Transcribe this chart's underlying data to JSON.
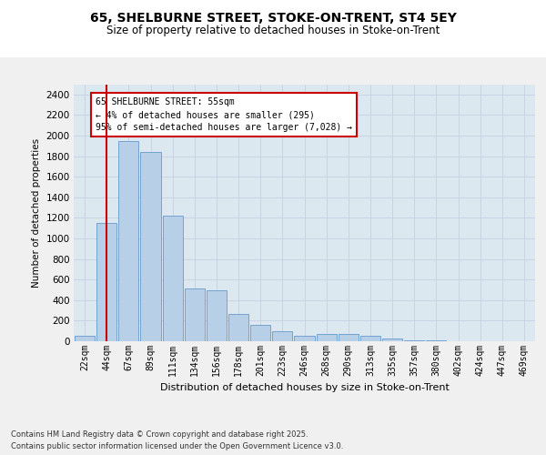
{
  "title_line1": "65, SHELBURNE STREET, STOKE-ON-TRENT, ST4 5EY",
  "title_line2": "Size of property relative to detached houses in Stoke-on-Trent",
  "xlabel": "Distribution of detached houses by size in Stoke-on-Trent",
  "ylabel": "Number of detached properties",
  "categories": [
    "22sqm",
    "44sqm",
    "67sqm",
    "89sqm",
    "111sqm",
    "134sqm",
    "156sqm",
    "178sqm",
    "201sqm",
    "223sqm",
    "246sqm",
    "268sqm",
    "290sqm",
    "313sqm",
    "335sqm",
    "357sqm",
    "380sqm",
    "402sqm",
    "424sqm",
    "447sqm",
    "469sqm"
  ],
  "values": [
    50,
    1150,
    1950,
    1840,
    1220,
    510,
    500,
    265,
    155,
    95,
    55,
    75,
    75,
    50,
    28,
    8,
    5,
    2,
    1,
    1,
    1
  ],
  "bar_color": "#b8cfe8",
  "bar_edge_color": "#6699cc",
  "redline_x": 1.0,
  "annotation_text": "65 SHELBURNE STREET: 55sqm\n← 4% of detached houses are smaller (295)\n95% of semi-detached houses are larger (7,028) →",
  "annotation_box_color": "#ffffff",
  "annotation_box_edge": "#cc0000",
  "ylim": [
    0,
    2500
  ],
  "yticks": [
    0,
    200,
    400,
    600,
    800,
    1000,
    1200,
    1400,
    1600,
    1800,
    2000,
    2200,
    2400
  ],
  "grid_color": "#c8d4e4",
  "bg_color": "#dce8f0",
  "fig_color": "#f0f0f0",
  "footer_line1": "Contains HM Land Registry data © Crown copyright and database right 2025.",
  "footer_line2": "Contains public sector information licensed under the Open Government Licence v3.0."
}
